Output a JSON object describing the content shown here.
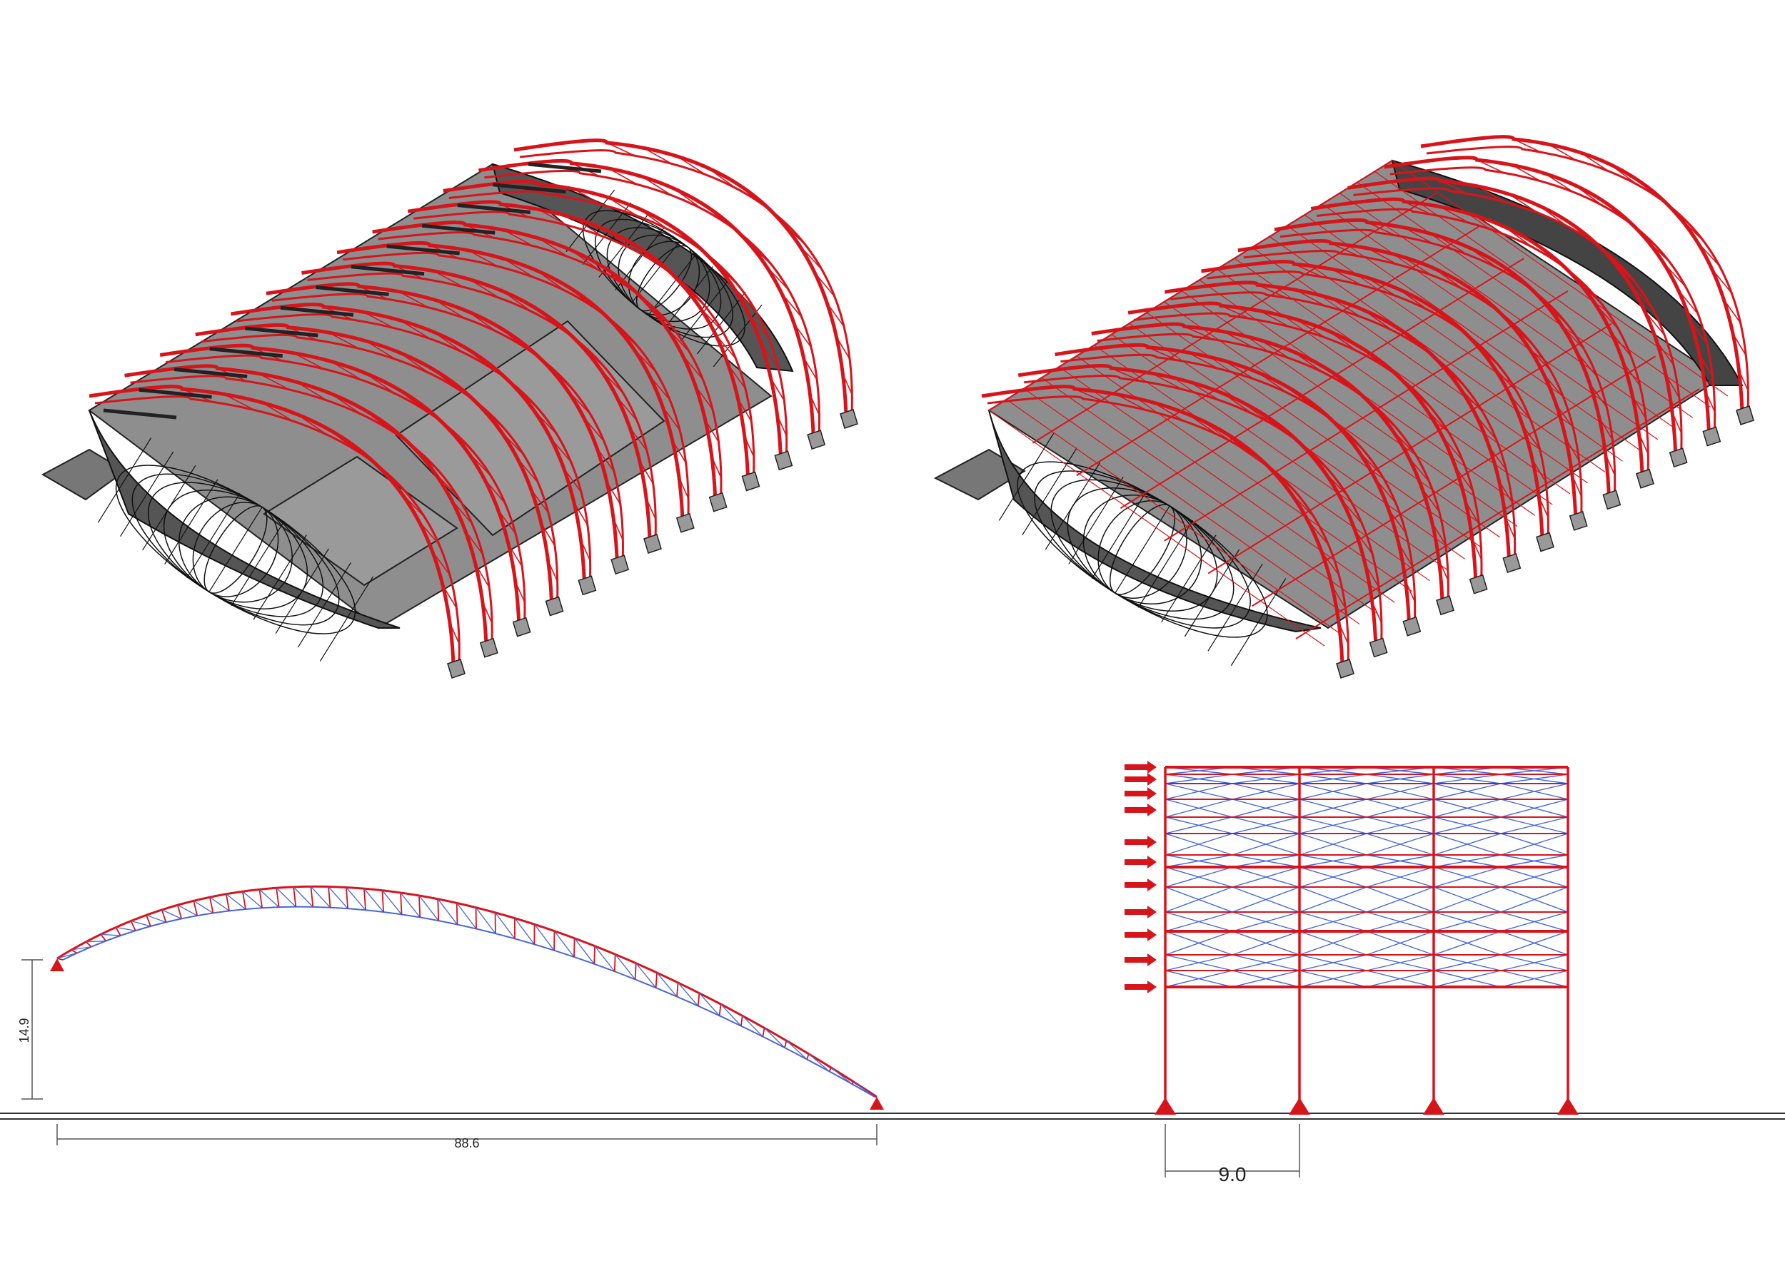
{
  "colors": {
    "truss_red": "#d8141b",
    "brace_blue": "#4466dd",
    "roof_grey": "#8e8e8e",
    "shell_dark": "#3a3a3a",
    "dim_line": "#555555",
    "ground": "#333333"
  },
  "icons": {
    "support": "triangle-support-icon",
    "load": "arrow-right-load-icon"
  },
  "arch_elevation": {
    "height_label": "14.9",
    "span_label": "88.6"
  },
  "frame_elevation": {
    "bay_label": "9.0",
    "bays": 3,
    "load_arrows": 10
  },
  "isometric_views": {
    "count": 2
  }
}
